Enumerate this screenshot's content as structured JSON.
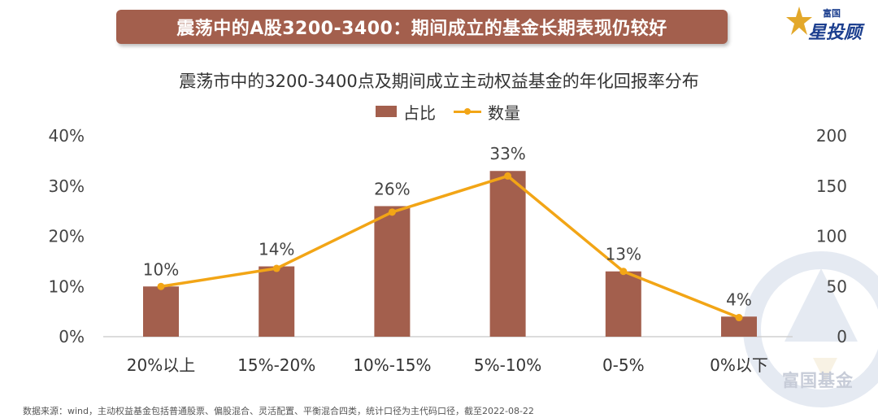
{
  "header": {
    "banner_title": "震荡中的A股3200-3400：期间成立的基金长期表现仍较好",
    "logo_top": "富国",
    "logo_main": "星投顾"
  },
  "watermark": {
    "text": "富国基金"
  },
  "footer": {
    "source": "数据来源：wind，主动权益基金包括普通股票、偏股混合、灵活配置、平衡混合四类，统计口径为主代码口径，截至2022-08-22"
  },
  "colors": {
    "bar": "#a35f4d",
    "line": "#f2a516",
    "banner": "#a35f4d"
  },
  "chart_data": {
    "type": "bar",
    "title": "震荡市中的3200-3400点及期间成立主动权益基金的年化回报率分布",
    "categories": [
      "20%以上",
      "15%-20%",
      "10%-15%",
      "5%-10%",
      "0-5%",
      "0%以下"
    ],
    "series": [
      {
        "name": "占比",
        "type": "bar",
        "axis": "left",
        "values": [
          10,
          14,
          26,
          33,
          13,
          4
        ],
        "labels": [
          "10%",
          "14%",
          "26%",
          "33%",
          "13%",
          "4%"
        ]
      },
      {
        "name": "数量",
        "type": "line",
        "axis": "right",
        "values": [
          50,
          68,
          124,
          160,
          65,
          19
        ]
      }
    ],
    "y_left": {
      "min": 0,
      "max": 40,
      "ticks": [
        "0%",
        "10%",
        "20%",
        "30%",
        "40%"
      ]
    },
    "y_right": {
      "min": 0,
      "max": 200,
      "ticks": [
        "0",
        "50",
        "100",
        "150",
        "200"
      ]
    },
    "grid": false,
    "legend_position": "top-center"
  }
}
